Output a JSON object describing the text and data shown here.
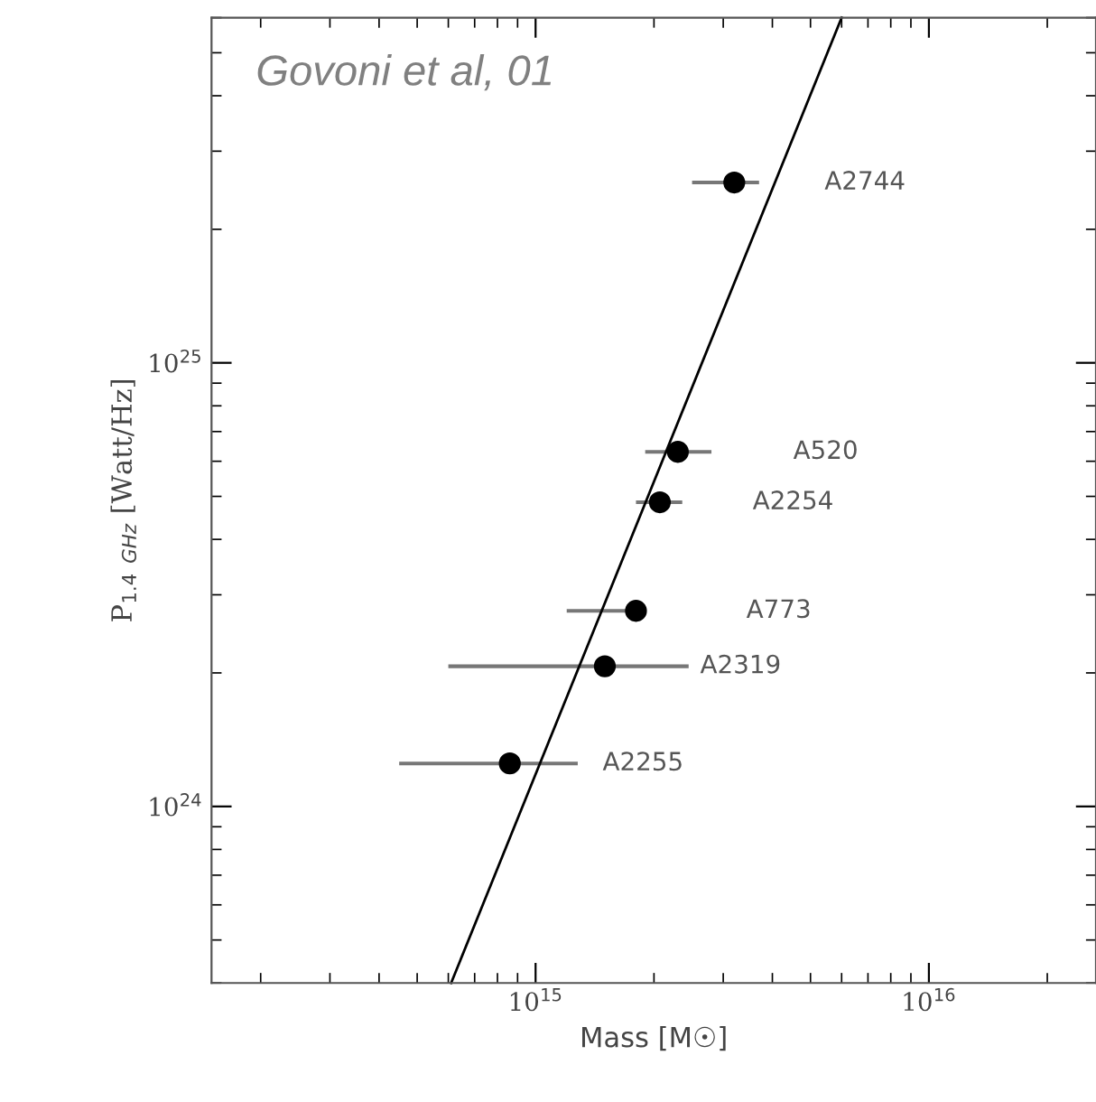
{
  "chart_data": {
    "type": "scatter",
    "xlabel": "Mass [M☉]",
    "ylabel": "P$_{1.4}$ $_{GHz}$ [Watt/Hz]",
    "log": "xy",
    "grid": false,
    "marker": "circle",
    "xlim": [
      150000000000000.0,
      2.66e+16
    ],
    "ylim": [
      4e+23,
      6e+25
    ],
    "xticks": [
      {
        "value": 1000000000000000.0,
        "label": "10$^{15}$"
      },
      {
        "value": 1e+16,
        "label": "10$^{16}$"
      }
    ],
    "yticks": [
      {
        "value": 1e+24,
        "label": "10$^{24}$"
      },
      {
        "value": 1e+25,
        "label": "10$^{25}$"
      }
    ],
    "series": [
      {
        "type": "scatter",
        "color": "#000000",
        "x": [
          3200000000000000.0,
          2300000000000000.0,
          2070000000000000.0,
          1800000000000000.0,
          1500000000000000.0,
          860000000000000.0
        ],
        "values": [
          2.55e+25,
          6.3e+24,
          4.85e+24,
          2.76e+24,
          2.07e+24,
          1.25e+24
        ],
        "xerrors": [
          [
            2500000000000000.0,
            3700000000000000.0
          ],
          [
            1900000000000000.0,
            2800000000000000.0
          ],
          [
            1800000000000000.0,
            2360000000000000.0
          ],
          [
            1200000000000000.0,
            1900000000000000.0
          ],
          [
            600000000000000.0,
            2450000000000000.0
          ],
          [
            450000000000000.0,
            1280000000000000.0
          ]
        ]
      },
      {
        "type": "line",
        "color": "#000000",
        "line_style": "solid",
        "marker": "none",
        "x": [
          610000000000000.0,
          6000000000000000.0
        ],
        "values": [
          4e+23,
          6e+25
        ]
      }
    ],
    "annotations": [
      "Govoni et al, 01",
      "A2744",
      "A520",
      "A2254",
      "A773",
      "A2319",
      "A2255"
    ]
  }
}
